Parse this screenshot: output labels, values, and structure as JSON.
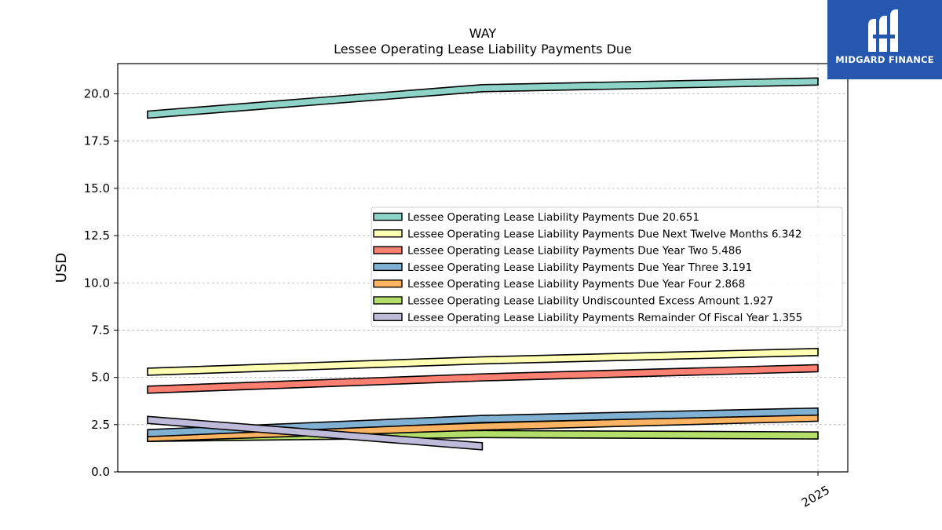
{
  "chart_data": {
    "type": "line",
    "title": "WAY",
    "subtitle": "Lessee Operating Lease Liability Payments Due",
    "ylabel": "USD",
    "xlabel": "",
    "ylim": [
      0,
      21.6
    ],
    "yticks": [
      "0.0",
      "2.5",
      "5.0",
      "7.5",
      "10.0",
      "12.5",
      "15.0",
      "17.5",
      "20.0"
    ],
    "x_ticks": [
      "2025"
    ],
    "grid": true,
    "legend_placement": "center-right",
    "series": [
      {
        "name": "Lessee Operating Lease Liability Payments Due",
        "legend": "Lessee Operating Lease Liability Payments Due  20.651",
        "color": "#8dd3c7",
        "x": [
          "2023-01-01",
          "2024-01-01",
          "2025-01-01"
        ],
        "values": [
          18.9,
          20.3,
          20.651
        ]
      },
      {
        "name": "Lessee Operating Lease Liability Payments Due Next Twelve Months",
        "legend": "Lessee Operating Lease Liability Payments Due Next Twelve Months  6.342",
        "color": "#ffffb3",
        "x": [
          "2023-01-01",
          "2024-01-01",
          "2025-01-01"
        ],
        "values": [
          5.3,
          5.9,
          6.342
        ]
      },
      {
        "name": "Lessee Operating Lease Liability Payments Due Year Two",
        "legend": "Lessee Operating Lease Liability Payments Due Year Two  5.486",
        "color": "#fb8072",
        "x": [
          "2023-01-01",
          "2024-01-01",
          "2025-01-01"
        ],
        "values": [
          4.35,
          5.0,
          5.486
        ]
      },
      {
        "name": "Lessee Operating Lease Liability Payments Due Year Three",
        "legend": "Lessee Operating Lease Liability Payments Due Year Three  3.191",
        "color": "#80b1d3",
        "x": [
          "2023-01-01",
          "2024-01-01",
          "2025-01-01"
        ],
        "values": [
          2.05,
          2.8,
          3.191
        ]
      },
      {
        "name": "Lessee Operating Lease Liability Payments Due Year Four",
        "legend": "Lessee Operating Lease Liability Payments Due Year Four  2.868",
        "color": "#fdb462",
        "x": [
          "2023-01-01",
          "2024-01-01",
          "2025-01-01"
        ],
        "values": [
          1.8,
          2.4,
          2.868
        ]
      },
      {
        "name": "Lessee Operating Lease Liability Undiscounted Excess Amount",
        "legend": "Lessee Operating Lease Liability Undiscounted Excess Amount  1.927",
        "color": "#b3de69",
        "x": [
          "2023-01-01",
          "2024-01-01",
          "2025-01-01"
        ],
        "values": [
          1.8,
          2.0,
          1.927
        ]
      },
      {
        "name": "Lessee Operating Lease Liability Payments Remainder Of Fiscal Year",
        "legend": "Lessee Operating Lease Liability Payments Remainder Of Fiscal Year  1.355",
        "color": "#bebada",
        "x": [
          "2023-01-01",
          "2024-01-01"
        ],
        "values": [
          2.75,
          1.355
        ]
      }
    ]
  },
  "logo": {
    "text": "MIDGARD FINANCE",
    "icon": "midgard-logo-icon",
    "background": "#2557ae"
  }
}
